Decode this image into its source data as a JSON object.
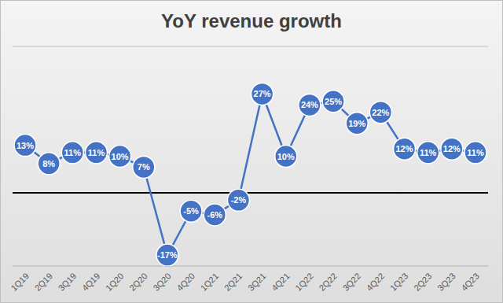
{
  "chart_data": {
    "type": "line",
    "title": "YoY revenue growth",
    "categories": [
      "1Q19",
      "2Q19",
      "3Q19",
      "4Q19",
      "1Q20",
      "2Q20",
      "3Q20",
      "4Q20",
      "1Q21",
      "2Q21",
      "3Q21",
      "4Q21",
      "1Q22",
      "2Q22",
      "3Q22",
      "4Q22",
      "1Q23",
      "2Q23",
      "3Q23",
      "4Q23"
    ],
    "values": [
      13,
      8,
      11,
      11,
      10,
      7,
      -17,
      -5,
      -6,
      -2,
      27,
      10,
      24,
      25,
      19,
      22,
      12,
      11,
      12,
      11
    ],
    "value_labels": [
      "13%",
      "8%",
      "11%",
      "11%",
      "10%",
      "7%",
      "-17%",
      "-5%",
      "-6%",
      "-2%",
      "27%",
      "10%",
      "24%",
      "25%",
      "19%",
      "22%",
      "12%",
      "11%",
      "12%",
      "11%"
    ],
    "color": "#4472c4",
    "ylim": [
      -20,
      40
    ],
    "yticks": [
      -20,
      -10,
      0,
      10,
      20,
      30,
      40
    ],
    "grid": true,
    "data_labels": true,
    "tick_labels": "x",
    "marker": "circle"
  }
}
